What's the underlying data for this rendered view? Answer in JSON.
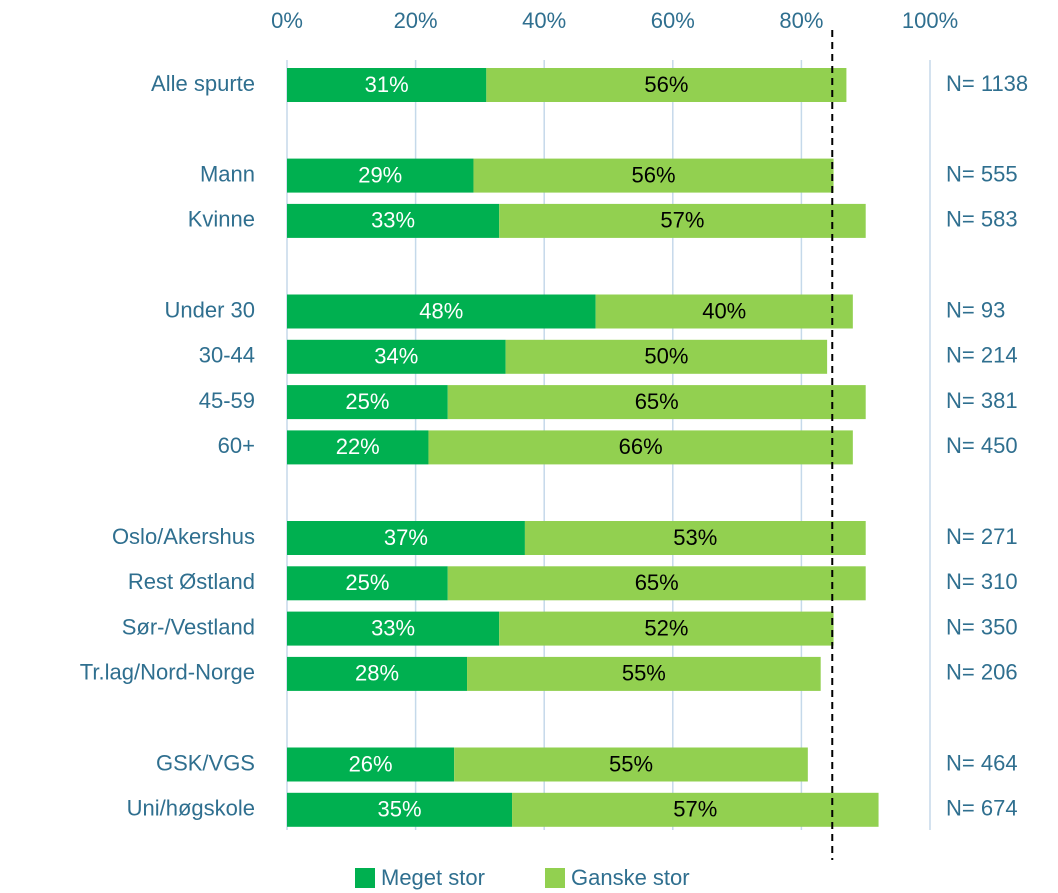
{
  "chart_data": {
    "type": "stacked_barh",
    "categories": [
      "Alle spurte",
      null,
      "Mann",
      "Kvinne",
      null,
      "Under 30",
      "30-44",
      "45-59",
      "60+",
      null,
      "Oslo/Akershus",
      "Rest Østland",
      "Sør-/Vestland",
      "Tr.lag/Nord-Norge",
      null,
      "GSK/VGS",
      "Uni/høgskole"
    ],
    "series": [
      {
        "name": "Meget stor",
        "color": "#00b050",
        "values": [
          31,
          null,
          29,
          33,
          null,
          48,
          34,
          25,
          22,
          null,
          37,
          25,
          33,
          28,
          null,
          26,
          35
        ],
        "value_labels": [
          "31%",
          null,
          "29%",
          "33%",
          null,
          "48%",
          "34%",
          "25%",
          "22%",
          null,
          "37%",
          "25%",
          "33%",
          "28%",
          null,
          "26%",
          "35%"
        ]
      },
      {
        "name": "Ganske stor",
        "color": "#92d050",
        "values": [
          56,
          null,
          56,
          57,
          null,
          40,
          50,
          65,
          66,
          null,
          53,
          65,
          52,
          55,
          null,
          55,
          57
        ],
        "value_labels": [
          "56%",
          null,
          "56%",
          "57%",
          null,
          "40%",
          "50%",
          "65%",
          "66%",
          null,
          "53%",
          "65%",
          "52%",
          "55%",
          null,
          "55%",
          "57%"
        ]
      }
    ],
    "n_labels": [
      "N= 1138",
      null,
      "N= 555",
      "N= 583",
      null,
      "N= 93",
      "N= 214",
      "N= 381",
      "N= 450",
      null,
      "N= 271",
      "N= 310",
      "N= 350",
      "N= 206",
      null,
      "N= 464",
      "N= 674"
    ],
    "xlim": [
      0,
      100
    ],
    "xticks": [
      {
        "value": 0,
        "label": "0%"
      },
      {
        "value": 20,
        "label": "20%"
      },
      {
        "value": 40,
        "label": "40%"
      },
      {
        "value": 60,
        "label": "60%"
      },
      {
        "value": 80,
        "label": "80%"
      },
      {
        "value": 100,
        "label": "100%"
      }
    ],
    "grid": true,
    "reference_line": 84.8,
    "legend": "bottom"
  }
}
